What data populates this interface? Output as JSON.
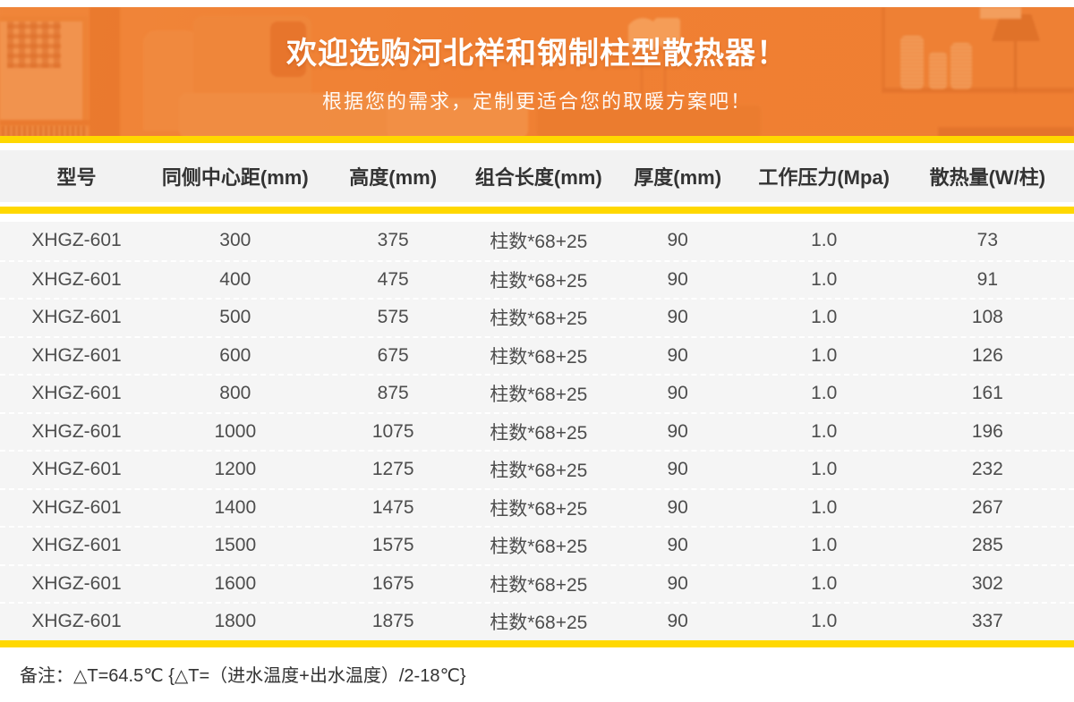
{
  "banner": {
    "title": "欢迎选购河北祥和钢制柱型散热器！",
    "subtitle": "根据您的需求，定制更适合您的取暖方案吧！"
  },
  "colors": {
    "banner_orange": "#ef8034",
    "accent_yellow": "#ffd800",
    "header_bg": "#f2f2f2",
    "row_bg": "#f5f5f5",
    "header_text": "#333333",
    "row_text": "#4d4d4d",
    "note_text": "#333333"
  },
  "table": {
    "headers": [
      "型号",
      "同侧中心距(mm)",
      "高度(mm)",
      "组合长度(mm)",
      "厚度(mm)",
      "工作压力(Mpa)",
      "散热量(W/柱)"
    ],
    "rows": [
      [
        "XHGZ-601",
        "300",
        "375",
        "柱数*68+25",
        "90",
        "1.0",
        "73"
      ],
      [
        "XHGZ-601",
        "400",
        "475",
        "柱数*68+25",
        "90",
        "1.0",
        "91"
      ],
      [
        "XHGZ-601",
        "500",
        "575",
        "柱数*68+25",
        "90",
        "1.0",
        "108"
      ],
      [
        "XHGZ-601",
        "600",
        "675",
        "柱数*68+25",
        "90",
        "1.0",
        "126"
      ],
      [
        "XHGZ-601",
        "800",
        "875",
        "柱数*68+25",
        "90",
        "1.0",
        "161"
      ],
      [
        "XHGZ-601",
        "1000",
        "1075",
        "柱数*68+25",
        "90",
        "1.0",
        "196"
      ],
      [
        "XHGZ-601",
        "1200",
        "1275",
        "柱数*68+25",
        "90",
        "1.0",
        "232"
      ],
      [
        "XHGZ-601",
        "1400",
        "1475",
        "柱数*68+25",
        "90",
        "1.0",
        "267"
      ],
      [
        "XHGZ-601",
        "1500",
        "1575",
        "柱数*68+25",
        "90",
        "1.0",
        "285"
      ],
      [
        "XHGZ-601",
        "1600",
        "1675",
        "柱数*68+25",
        "90",
        "1.0",
        "302"
      ],
      [
        "XHGZ-601",
        "1800",
        "1875",
        "柱数*68+25",
        "90",
        "1.0",
        "337"
      ]
    ]
  },
  "footer": {
    "note": "备注：△T=64.5℃ {△T=（进水温度+出水温度）/2-18℃}"
  }
}
